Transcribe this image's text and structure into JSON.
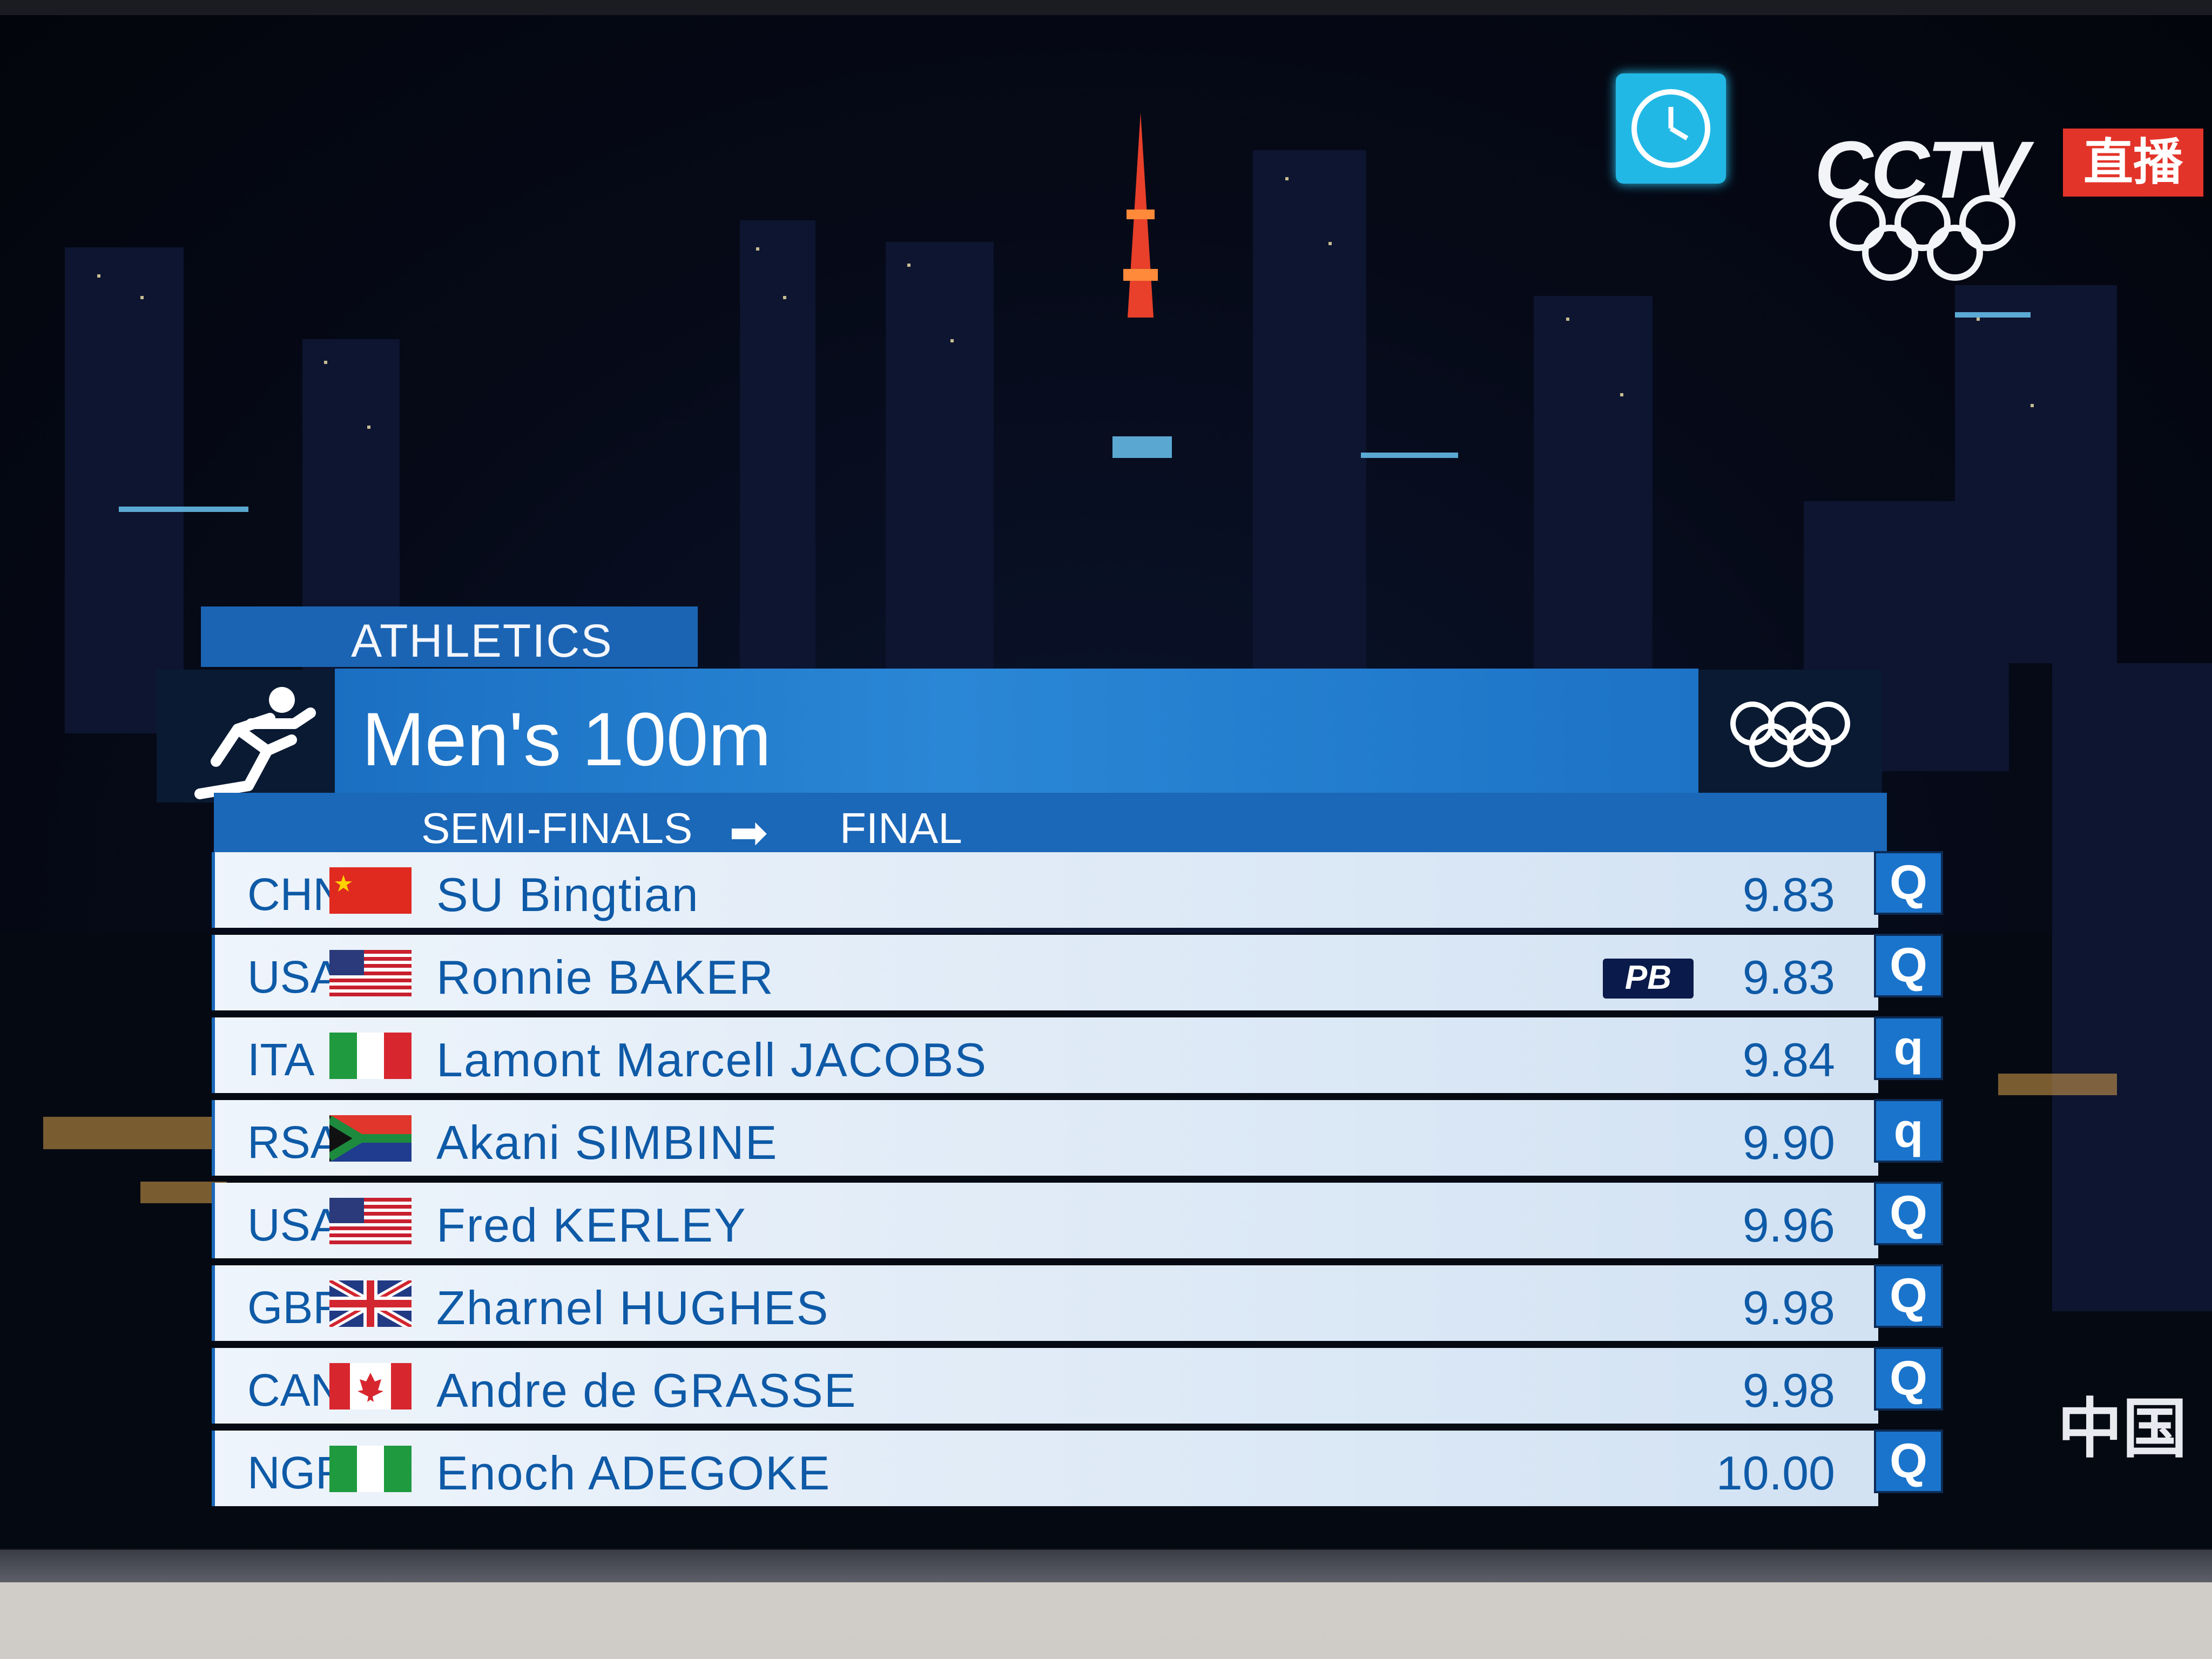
{
  "broadcaster": {
    "name": "CCTV",
    "live_label": "直播",
    "watermark": "中国"
  },
  "scoreboard": {
    "sport": "ATHLETICS",
    "event": "Men's 100m",
    "stage_from": "SEMI-FINALS",
    "stage_to": "FINAL",
    "results": [
      {
        "country": "CHN",
        "flag": "china-flag",
        "name": "SU Bingtian",
        "time": "9.83",
        "qualifier": "Q",
        "note": ""
      },
      {
        "country": "USA",
        "flag": "usa-flag",
        "name": "Ronnie BAKER",
        "time": "9.83",
        "qualifier": "Q",
        "note": "PB"
      },
      {
        "country": "ITA",
        "flag": "italy-flag",
        "name": "Lamont Marcell JACOBS",
        "time": "9.84",
        "qualifier": "q",
        "note": ""
      },
      {
        "country": "RSA",
        "flag": "south-africa-flag",
        "name": "Akani SIMBINE",
        "time": "9.90",
        "qualifier": "q",
        "note": ""
      },
      {
        "country": "USA",
        "flag": "usa-flag",
        "name": "Fred KERLEY",
        "time": "9.96",
        "qualifier": "Q",
        "note": ""
      },
      {
        "country": "GBR",
        "flag": "uk-flag",
        "name": "Zharnel HUGHES",
        "time": "9.98",
        "qualifier": "Q",
        "note": ""
      },
      {
        "country": "CAN",
        "flag": "canada-flag",
        "name": "Andre de GRASSE",
        "time": "9.98",
        "qualifier": "Q",
        "note": ""
      },
      {
        "country": "NGR",
        "flag": "nigeria-flag",
        "name": "Enoch ADEGOKE",
        "time": "10.00",
        "qualifier": "Q",
        "note": ""
      }
    ]
  },
  "colors": {
    "scoreboard_blue": "#1b67b8",
    "row_text": "#0e5aa7",
    "clock_icon": "#22b8e6",
    "live_red": "#e3342a"
  }
}
